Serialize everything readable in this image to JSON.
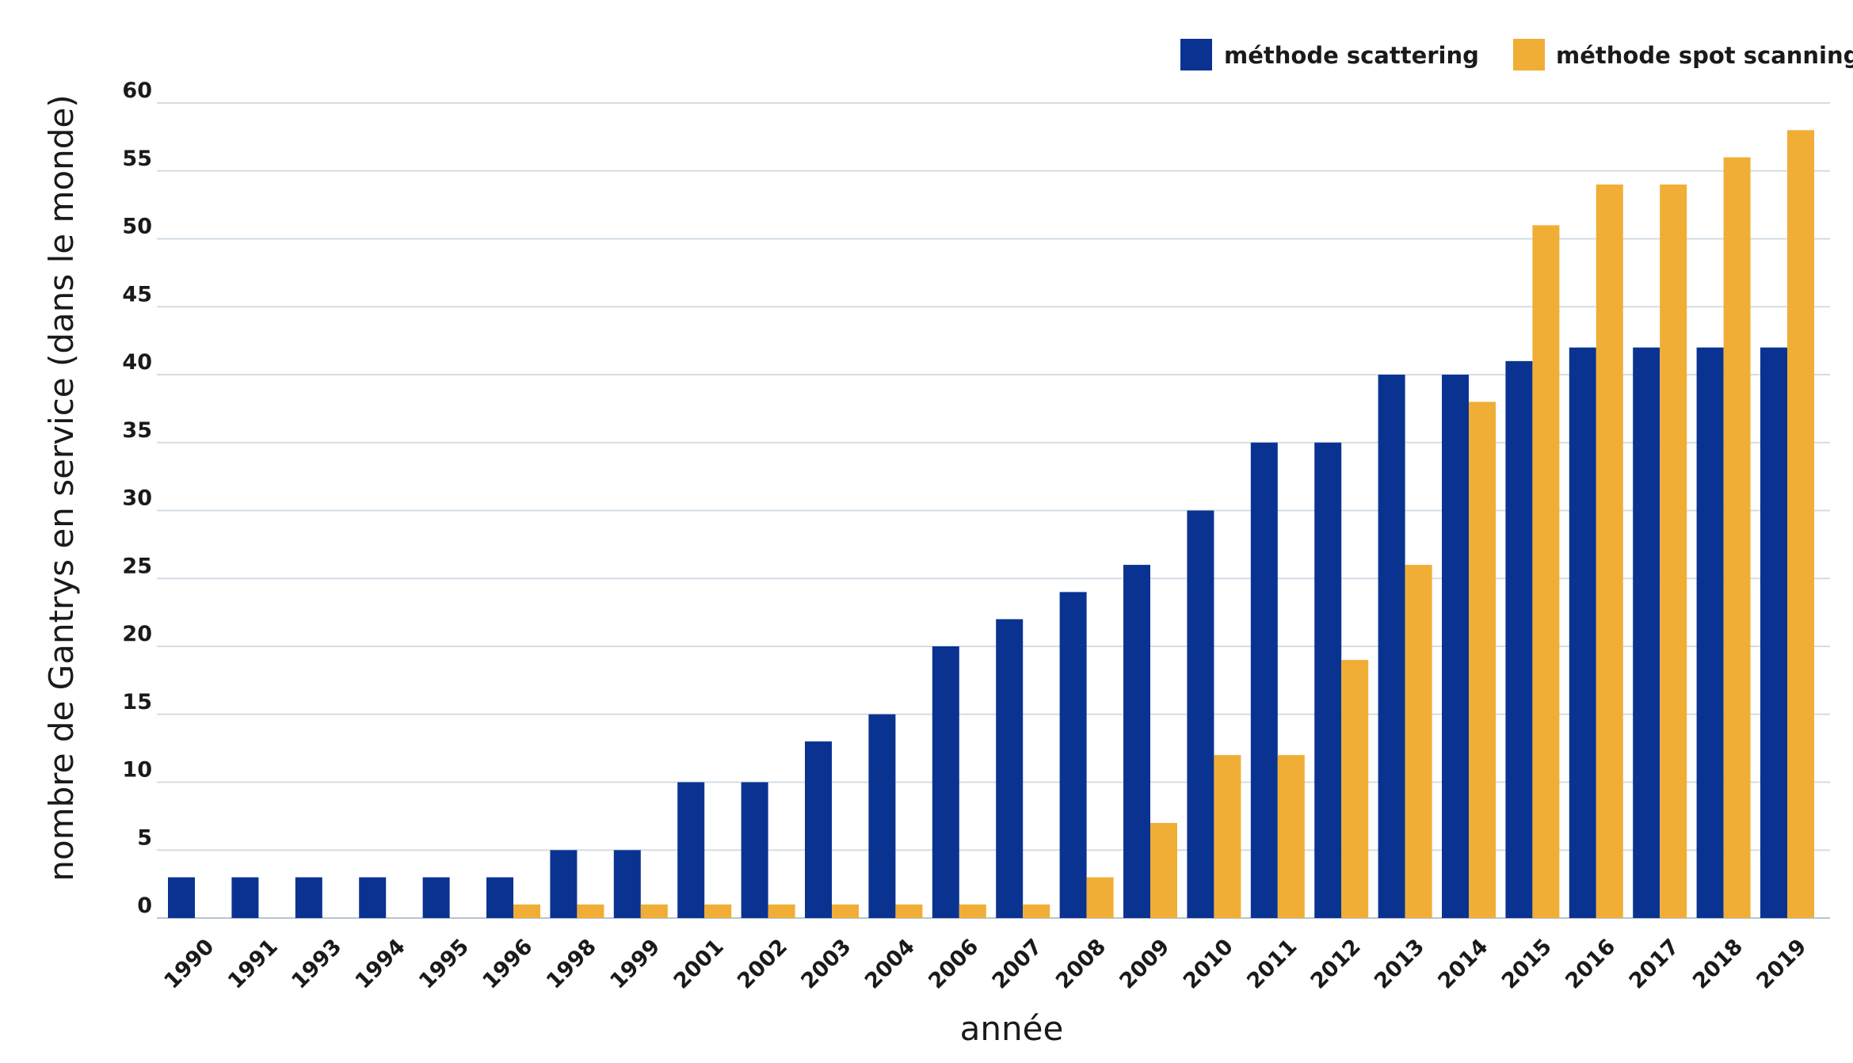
{
  "chart_data": {
    "type": "bar",
    "title": "",
    "xlabel": "année",
    "ylabel": "nombre de Gantrys en service (dans le monde)",
    "ylim": [
      0,
      60
    ],
    "yticks": [
      0,
      5,
      10,
      15,
      20,
      25,
      30,
      35,
      40,
      45,
      50,
      55,
      60
    ],
    "grid": true,
    "legend_position": "top-right",
    "categories": [
      "1990",
      "1991",
      "1993",
      "1994",
      "1995",
      "1996",
      "1998",
      "1999",
      "2001",
      "2002",
      "2003",
      "2004",
      "2006",
      "2007",
      "2008",
      "2009",
      "2010",
      "2011",
      "2012",
      "2013",
      "2014",
      "2015",
      "2016",
      "2017",
      "2018",
      "2019"
    ],
    "series": [
      {
        "name": "méthode scattering",
        "color": "#0a3391",
        "values": [
          3,
          3,
          3,
          3,
          3,
          3,
          5,
          5,
          10,
          10,
          13,
          15,
          20,
          22,
          24,
          26,
          30,
          35,
          35,
          40,
          40,
          41,
          42,
          42,
          42,
          42
        ]
      },
      {
        "name": "méthode spot scanning",
        "color": "#f0ae36",
        "values": [
          0,
          0,
          0,
          0,
          0,
          1,
          1,
          1,
          1,
          1,
          1,
          1,
          1,
          1,
          3,
          7,
          12,
          12,
          19,
          26,
          38,
          51,
          54,
          54,
          56,
          58
        ]
      }
    ]
  }
}
